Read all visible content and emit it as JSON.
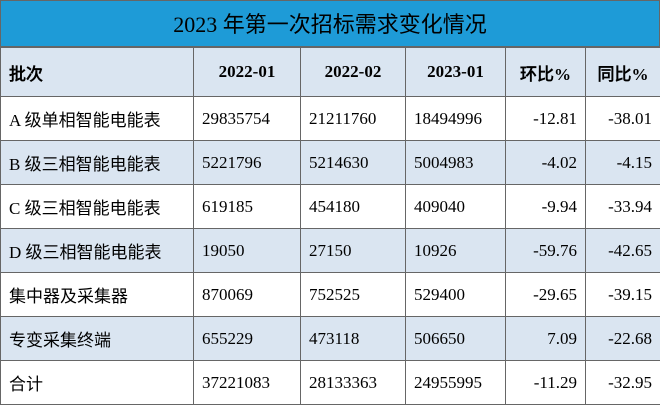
{
  "title": "2023 年第一次招标需求变化情况",
  "table": {
    "header": [
      "批次",
      "2022-01",
      "2022-02",
      "2023-01",
      "环比%",
      "同比%"
    ],
    "rows": [
      [
        "A 级单相智能电能表",
        29835754,
        21211760,
        18494996,
        -12.81,
        -38.01
      ],
      [
        "B 级三相智能电能表",
        5221796,
        5214630,
        5004983,
        -4.02,
        -4.15
      ],
      [
        "C 级三相智能电能表",
        619185,
        454180,
        409040,
        -9.94,
        -33.94
      ],
      [
        "D 级三相智能电能表",
        19050,
        27150,
        10926,
        -59.76,
        -42.65
      ],
      [
        "集中器及采集器",
        870069,
        752525,
        529400,
        -29.65,
        -39.15
      ],
      [
        "专变采集终端",
        655229,
        473118,
        506650,
        7.09,
        -22.68
      ],
      [
        "合计",
        37221083,
        28133363,
        24955995,
        -11.29,
        -32.95
      ]
    ]
  }
}
